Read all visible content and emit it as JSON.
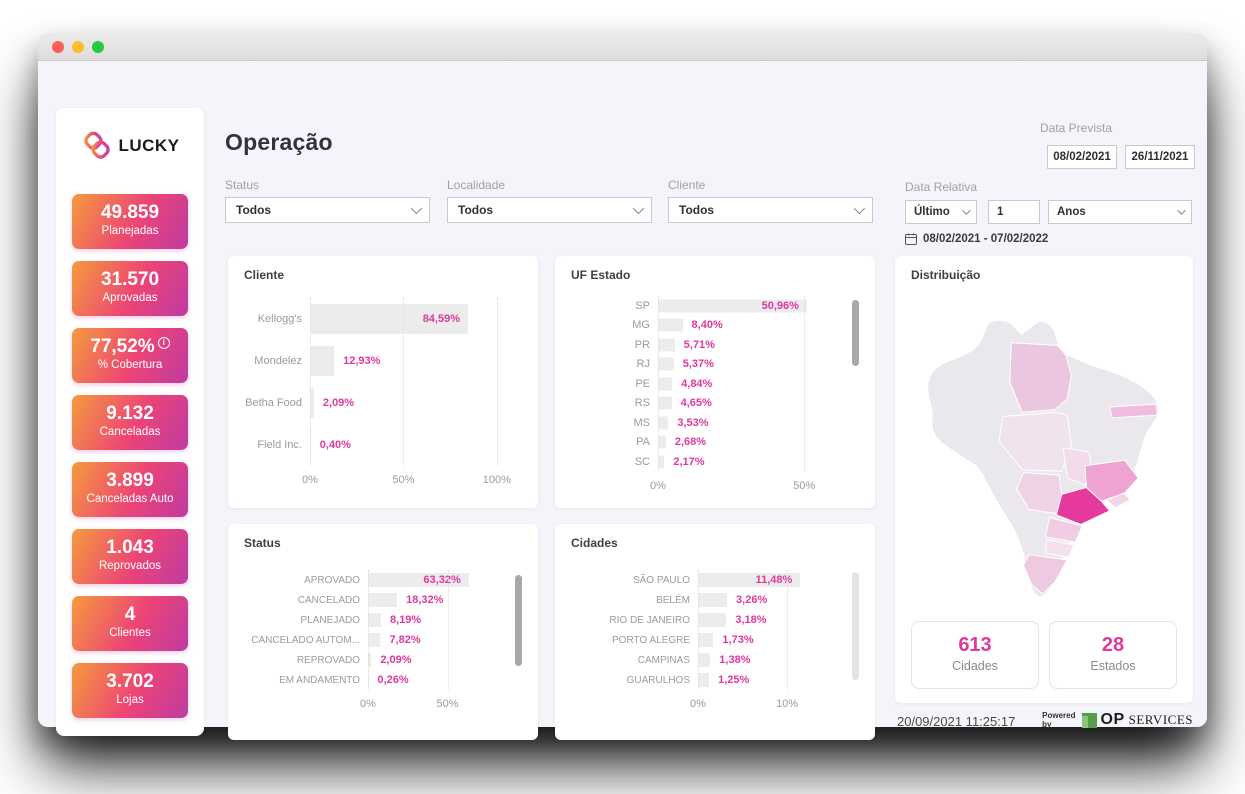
{
  "window": {
    "controls": [
      "close",
      "minimize",
      "zoom"
    ]
  },
  "sidebar": {
    "brand": "LUCKY",
    "accent_gradient": [
      "#F59B3C",
      "#EC4476",
      "#BE3BA2"
    ],
    "kpis": [
      {
        "value": "49.859",
        "label": "Planejadas",
        "info": false
      },
      {
        "value": "31.570",
        "label": "Aprovadas",
        "info": false
      },
      {
        "value": "77,52%",
        "label": "% Cobertura",
        "info": true
      },
      {
        "value": "9.132",
        "label": "Canceladas",
        "info": false
      },
      {
        "value": "3.899",
        "label": "Canceladas Auto",
        "info": false
      },
      {
        "value": "1.043",
        "label": "Reprovados",
        "info": false
      },
      {
        "value": "4",
        "label": "Clientes",
        "info": false
      },
      {
        "value": "3.702",
        "label": "Lojas",
        "info": false
      }
    ]
  },
  "header": {
    "title": "Operação",
    "filters": [
      {
        "label": "Status",
        "value": "Todos"
      },
      {
        "label": "Localidade",
        "value": "Todos"
      },
      {
        "label": "Cliente",
        "value": "Todos"
      }
    ],
    "data_prevista": {
      "label": "Data Prevista",
      "start": "08/02/2021",
      "end": "26/11/2021"
    },
    "data_relativa": {
      "label": "Data Relativa",
      "mode": "Último",
      "amount": "1",
      "unit": "Anos",
      "range": "08/02/2021 - 07/02/2022"
    }
  },
  "value_color": "#DE399E",
  "chart_data": [
    {
      "type": "bar",
      "orientation": "horizontal",
      "title": "Cliente",
      "categories": [
        "Kellogg's",
        "Mondelez",
        "Betha Food",
        "Field Inc."
      ],
      "values": [
        84.59,
        12.93,
        2.09,
        0.4
      ],
      "value_labels": [
        "84,59%",
        "12,93%",
        "2,09%",
        "0,40%"
      ],
      "xlim": [
        0,
        106
      ],
      "grid": "dotted-vertical",
      "legend": "none",
      "ticks": [
        {
          "label": "0%",
          "value": 0
        },
        {
          "label": "50%",
          "value": 50
        },
        {
          "label": "100%",
          "value": 100
        }
      ],
      "scrollbar": null
    },
    {
      "type": "bar",
      "orientation": "horizontal",
      "title": "UF Estado",
      "categories": [
        "SP",
        "MG",
        "PR",
        "RJ",
        "PE",
        "RS",
        "MS",
        "PA",
        "SC"
      ],
      "values": [
        50.96,
        8.4,
        5.71,
        5.37,
        4.84,
        4.65,
        3.53,
        2.68,
        2.17
      ],
      "value_labels": [
        "50,96%",
        "8,40%",
        "5,71%",
        "5,37%",
        "4,84%",
        "4,65%",
        "3,53%",
        "2,68%",
        "2,17%"
      ],
      "xlim": [
        0,
        64
      ],
      "grid": "dotted-vertical",
      "legend": "none",
      "ticks": [
        {
          "label": "0%",
          "value": 0
        },
        {
          "label": "50%",
          "value": 50
        }
      ],
      "scrollbar": {
        "top_pct": 2,
        "height_pct": 38,
        "color": "#A8A8A8"
      }
    },
    {
      "type": "bar",
      "orientation": "horizontal",
      "title": "Status",
      "categories": [
        "APROVADO",
        "CANCELADO",
        "PLANEJADO",
        "CANCELADO AUTOM...",
        "REPROVADO",
        "EM ANDAMENTO"
      ],
      "values": [
        63.32,
        18.32,
        8.19,
        7.82,
        2.09,
        0.26
      ],
      "value_labels": [
        "63,32%",
        "18,32%",
        "8,19%",
        "7,82%",
        "2,09%",
        "0,26%"
      ],
      "xlim": [
        0,
        88
      ],
      "grid": "dotted-vertical",
      "legend": "none",
      "ticks": [
        {
          "label": "0%",
          "value": 0
        },
        {
          "label": "50%",
          "value": 50
        }
      ],
      "scrollbar": {
        "top_pct": 4,
        "height_pct": 76,
        "color": "#A8A8A8"
      }
    },
    {
      "type": "bar",
      "orientation": "horizontal",
      "title": "Cidades",
      "categories": [
        "SÃO PAULO",
        "BELÉM",
        "RIO DE JANEIRO",
        "PORTO ALEGRE",
        "CAMPINAS",
        "GUARULHOS"
      ],
      "values": [
        11.48,
        3.26,
        3.18,
        1.73,
        1.38,
        1.25
      ],
      "value_labels": [
        "11,48%",
        "3,26%",
        "3,18%",
        "1,73%",
        "1,38%",
        "1,25%"
      ],
      "xlim": [
        0,
        16.5
      ],
      "grid": "dotted-vertical",
      "legend": "none",
      "ticks": [
        {
          "label": "0%",
          "value": 0
        },
        {
          "label": "10%",
          "value": 10
        }
      ],
      "scrollbar": {
        "top_pct": 2,
        "height_pct": 90,
        "color": "#E4E4E4"
      }
    }
  ],
  "map": {
    "title": "Distribuição",
    "base_color": "#EAE8EC",
    "states": [
      {
        "id": "pa",
        "color": "#EBC6E0"
      },
      {
        "id": "pe",
        "color": "#EFBCDD"
      },
      {
        "id": "mt",
        "color": "#F1E3EE"
      },
      {
        "id": "go",
        "color": "#F2DCEC"
      },
      {
        "id": "ms",
        "color": "#F0D2E7"
      },
      {
        "id": "mg",
        "color": "#EFA3D3"
      },
      {
        "id": "rj",
        "color": "#F1D6EA"
      },
      {
        "id": "sp",
        "color": "#E5399E"
      },
      {
        "id": "pr",
        "color": "#F0CCE5"
      },
      {
        "id": "sc",
        "color": "#F3DFEE"
      },
      {
        "id": "rs",
        "color": "#EEC9E2"
      }
    ],
    "stats": [
      {
        "value": "613",
        "label": "Cidades"
      },
      {
        "value": "28",
        "label": "Estados"
      }
    ]
  },
  "footer": {
    "timestamp": "20/09/2021 11:25:17",
    "powered_by": "Powered by",
    "brand_op": "OP",
    "brand_services": "SERVICES"
  }
}
